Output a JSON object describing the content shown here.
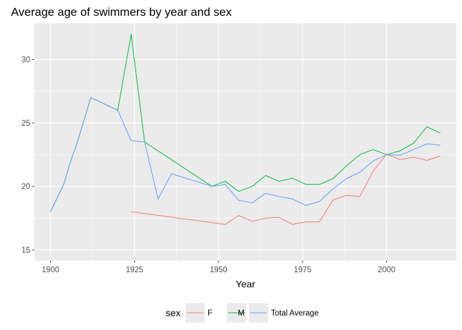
{
  "chart_data": {
    "type": "line",
    "title": "Average age of swimmers by year and sex",
    "xlabel": "Year",
    "ylabel": "",
    "xlim": [
      1900,
      2016
    ],
    "ylim": [
      15,
      32
    ],
    "x_ticks": [
      1900,
      1925,
      1950,
      1975,
      2000
    ],
    "y_ticks": [
      15,
      20,
      25,
      30
    ],
    "grid": true,
    "legend": {
      "title": "sex",
      "position": "bottom"
    },
    "series": [
      {
        "name": "F",
        "color": "#F8766D",
        "points": [
          [
            1924,
            18.0
          ],
          [
            1952,
            17.0
          ],
          [
            1956,
            17.7
          ],
          [
            1960,
            17.25
          ],
          [
            1964,
            17.5
          ],
          [
            1968,
            17.55
          ],
          [
            1972,
            17.0
          ],
          [
            1976,
            17.2
          ],
          [
            1980,
            17.2
          ],
          [
            1984,
            18.9
          ],
          [
            1988,
            19.3
          ],
          [
            1992,
            19.2
          ],
          [
            1996,
            21.2
          ],
          [
            2000,
            22.55
          ],
          [
            2004,
            22.1
          ],
          [
            2008,
            22.3
          ],
          [
            2012,
            22.05
          ],
          [
            2016,
            22.4
          ]
        ]
      },
      {
        "name": "M",
        "color": "#00BA38",
        "points": [
          [
            1900,
            18.0
          ],
          [
            1904,
            20.2
          ],
          [
            1906,
            22.0
          ],
          [
            1908,
            23.5
          ],
          [
            1912,
            27.0
          ],
          [
            1920,
            26.0
          ],
          [
            1924,
            32.0
          ],
          [
            1928,
            23.5
          ],
          [
            1948,
            20.0
          ],
          [
            1952,
            20.4
          ],
          [
            1956,
            19.6
          ],
          [
            1960,
            20.0
          ],
          [
            1964,
            20.85
          ],
          [
            1968,
            20.4
          ],
          [
            1972,
            20.65
          ],
          [
            1976,
            20.15
          ],
          [
            1980,
            20.15
          ],
          [
            1984,
            20.6
          ],
          [
            1988,
            21.6
          ],
          [
            1992,
            22.5
          ],
          [
            1996,
            22.9
          ],
          [
            2000,
            22.5
          ],
          [
            2004,
            22.8
          ],
          [
            2008,
            23.4
          ],
          [
            2012,
            24.7
          ],
          [
            2016,
            24.2
          ]
        ]
      },
      {
        "name": "Total Average",
        "color": "#619CFF",
        "points": [
          [
            1900,
            18.0
          ],
          [
            1904,
            20.2
          ],
          [
            1906,
            22.0
          ],
          [
            1908,
            23.5
          ],
          [
            1912,
            27.0
          ],
          [
            1920,
            26.0
          ],
          [
            1924,
            23.6
          ],
          [
            1928,
            23.5
          ],
          [
            1932,
            19.0
          ],
          [
            1936,
            21.0
          ],
          [
            1948,
            20.0
          ],
          [
            1952,
            20.15
          ],
          [
            1956,
            18.9
          ],
          [
            1960,
            18.7
          ],
          [
            1964,
            19.45
          ],
          [
            1968,
            19.2
          ],
          [
            1972,
            19.0
          ],
          [
            1976,
            18.5
          ],
          [
            1980,
            18.8
          ],
          [
            1984,
            19.8
          ],
          [
            1988,
            20.6
          ],
          [
            1992,
            21.1
          ],
          [
            1996,
            22.0
          ],
          [
            2000,
            22.5
          ],
          [
            2004,
            22.45
          ],
          [
            2008,
            22.9
          ],
          [
            2012,
            23.35
          ],
          [
            2016,
            23.25
          ]
        ]
      }
    ]
  }
}
